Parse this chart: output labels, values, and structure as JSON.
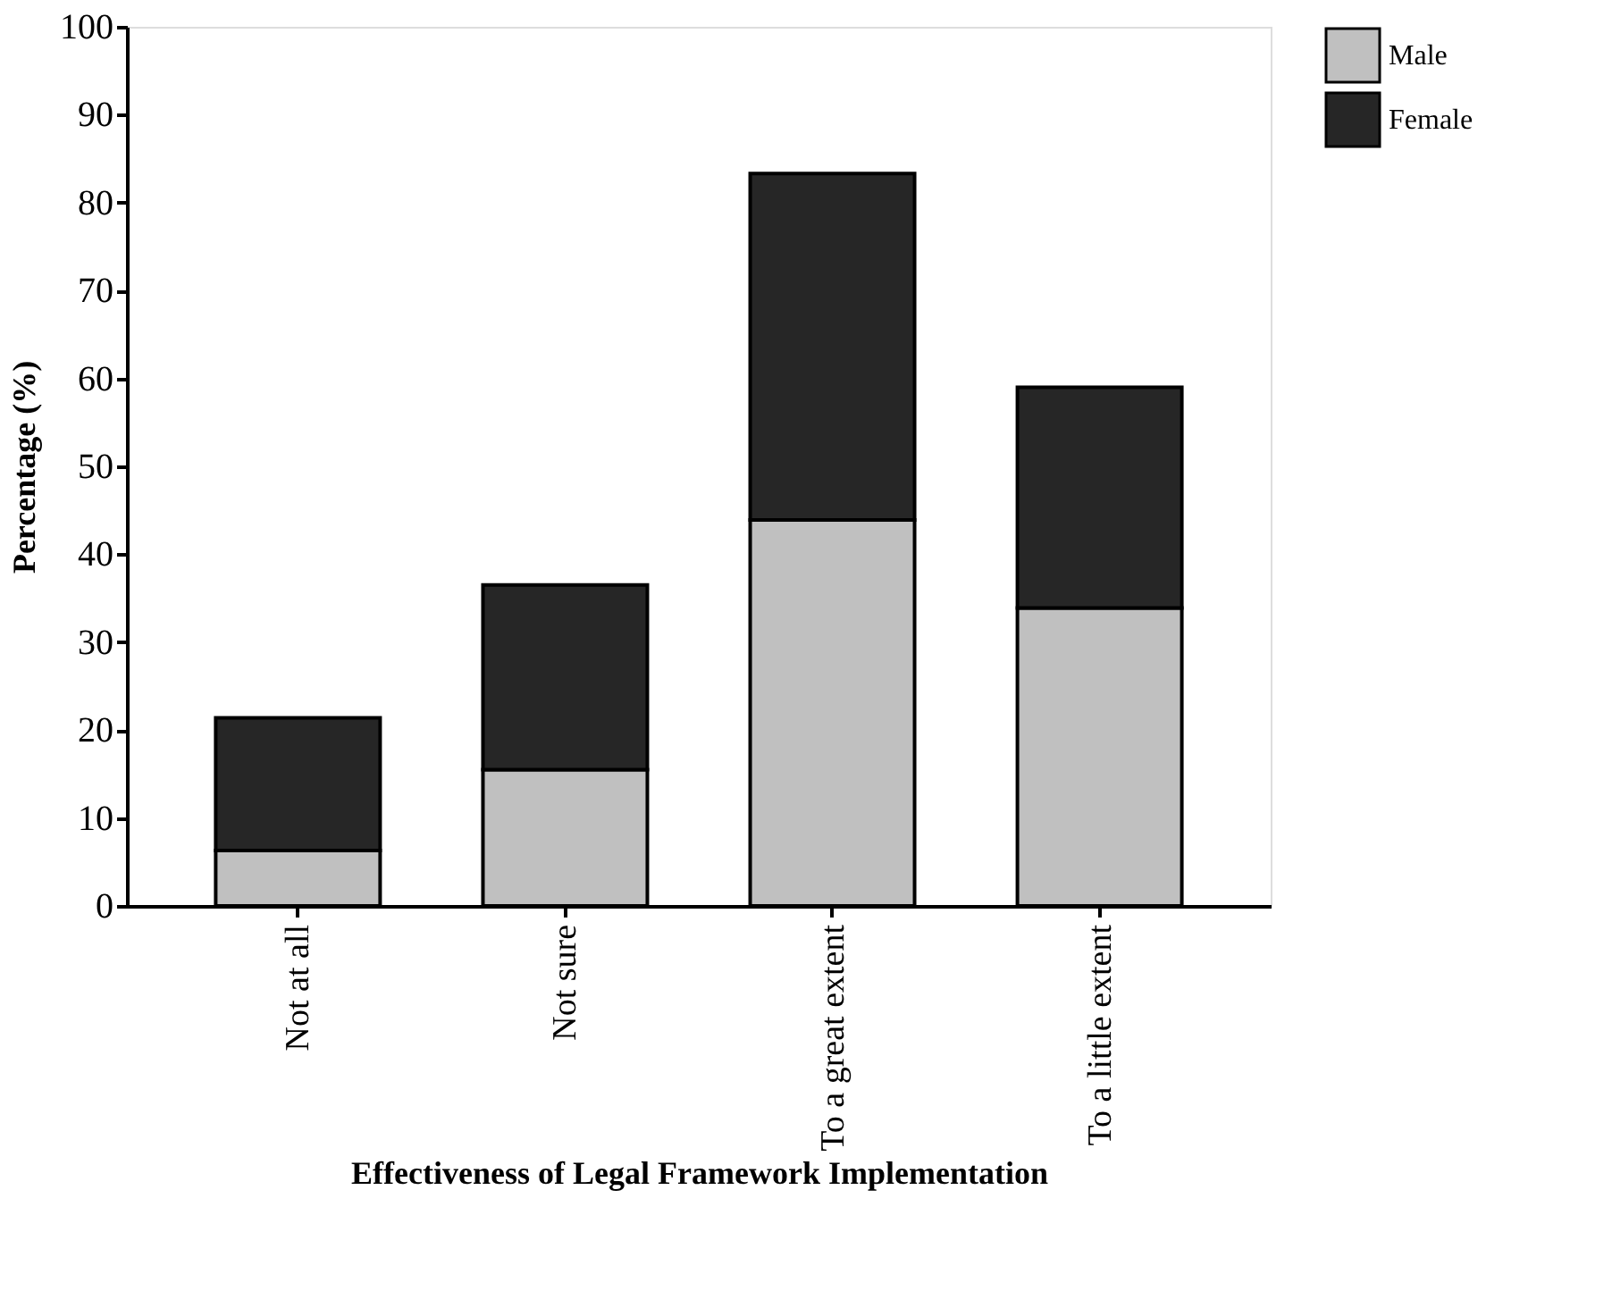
{
  "chart_data": {
    "type": "bar",
    "stacked": true,
    "xlabel": "Effectiveness of Legal Framework Implementation",
    "ylabel": "Percentage (%)",
    "categories": [
      "Not at all",
      "Not sure",
      "To a great extent",
      "To a little extent"
    ],
    "series": [
      {
        "name": "Male",
        "color": "#c0c0c0",
        "values": [
          6.3,
          15.5,
          43.9,
          33.9
        ]
      },
      {
        "name": "Female",
        "color": "#262626",
        "values": [
          15.1,
          21.0,
          39.4,
          25.1
        ]
      }
    ],
    "ylim": [
      0,
      100
    ],
    "yticks": [
      0,
      10,
      20,
      30,
      40,
      50,
      60,
      70,
      80,
      90,
      100
    ],
    "grid": false,
    "legend": "right"
  }
}
